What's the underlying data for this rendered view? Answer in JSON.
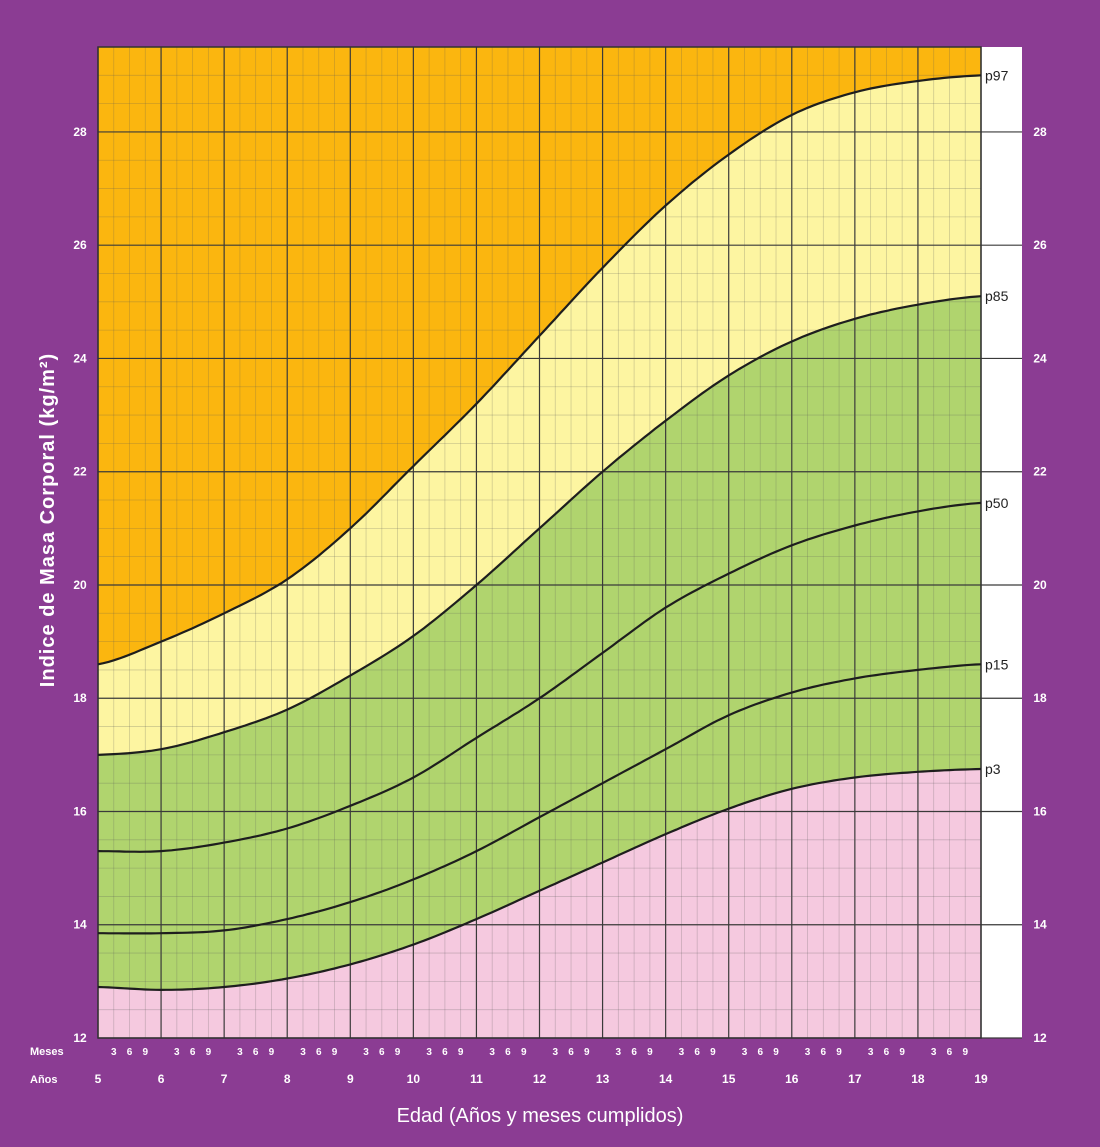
{
  "chart_data": {
    "type": "area",
    "title": "",
    "xlabel": "Edad (Años y meses cumplidos)",
    "ylabel": "Indice de Masa Corporal (kg/m²)",
    "xlim": [
      5,
      19
    ],
    "ylim": [
      12,
      29.5
    ],
    "x_ticks": [
      5,
      6,
      7,
      8,
      9,
      10,
      11,
      12,
      13,
      14,
      15,
      16,
      17,
      18,
      19
    ],
    "y_ticks": [
      12,
      14,
      16,
      18,
      20,
      22,
      24,
      26,
      28
    ],
    "month_ticks": [
      "3",
      "6",
      "9"
    ],
    "row_labels": {
      "months": "Meses",
      "years": "Años"
    },
    "grid": true,
    "x": [
      5,
      6,
      7,
      8,
      9,
      10,
      11,
      12,
      13,
      14,
      15,
      16,
      17,
      18,
      19
    ],
    "series": [
      {
        "name": "p97",
        "values": [
          18.6,
          19.0,
          19.5,
          20.1,
          21.0,
          22.1,
          23.2,
          24.4,
          25.6,
          26.7,
          27.6,
          28.3,
          28.7,
          28.9,
          29.0
        ]
      },
      {
        "name": "p85",
        "values": [
          17.0,
          17.1,
          17.4,
          17.8,
          18.4,
          19.1,
          20.0,
          21.0,
          22.0,
          22.9,
          23.7,
          24.3,
          24.7,
          24.95,
          25.1
        ]
      },
      {
        "name": "p50",
        "values": [
          15.3,
          15.3,
          15.45,
          15.7,
          16.1,
          16.6,
          17.3,
          18.0,
          18.8,
          19.6,
          20.2,
          20.7,
          21.05,
          21.3,
          21.45
        ]
      },
      {
        "name": "p15",
        "values": [
          13.85,
          13.85,
          13.9,
          14.1,
          14.4,
          14.8,
          15.3,
          15.9,
          16.5,
          17.1,
          17.7,
          18.1,
          18.35,
          18.5,
          18.6
        ]
      },
      {
        "name": "p3",
        "values": [
          12.9,
          12.85,
          12.9,
          13.05,
          13.3,
          13.65,
          14.1,
          14.6,
          15.1,
          15.6,
          16.05,
          16.4,
          16.6,
          16.7,
          16.75
        ]
      }
    ],
    "band_colors": {
      "above_p97": "#fbb60f",
      "p85_p97": "#fdf5a1",
      "p3_p85": "#b0d46e",
      "below_p3": "#f5c9df"
    },
    "frame_color": "#8b3c93"
  }
}
